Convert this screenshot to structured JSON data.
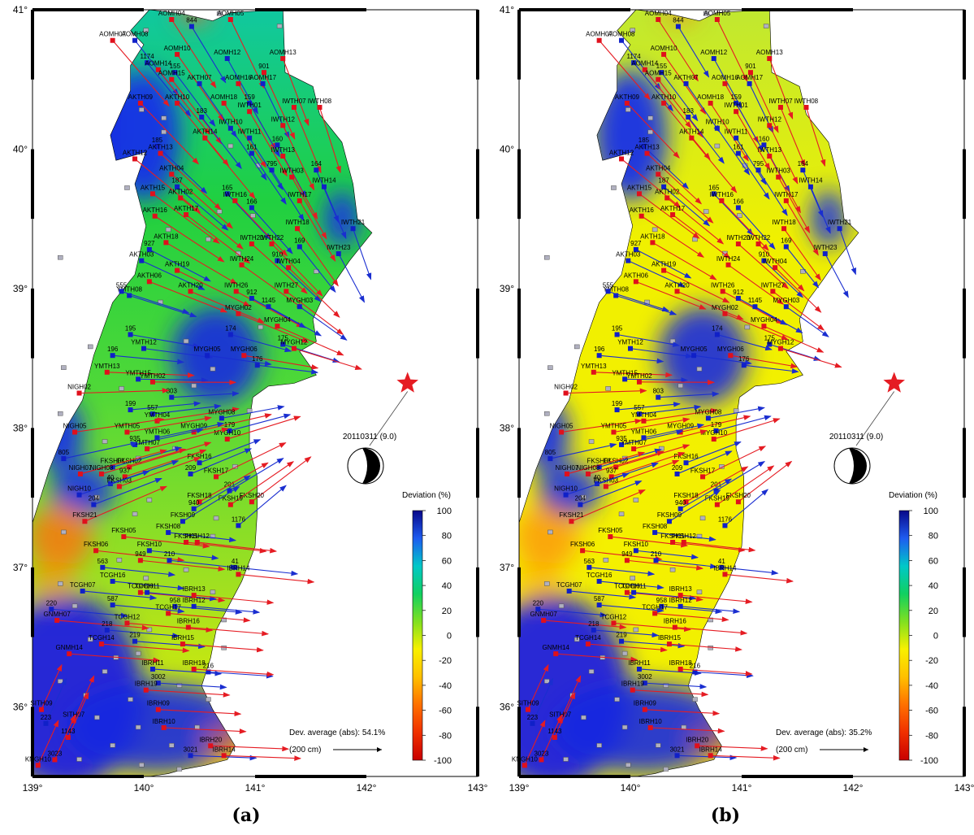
{
  "axes": {
    "lon_labels": [
      "139°",
      "140°",
      "141°",
      "142°",
      "143°"
    ],
    "lat_labels": [
      "36°",
      "37°",
      "38°",
      "39°",
      "40°",
      "41°"
    ],
    "lon_range": [
      139,
      143
    ],
    "lat_range": [
      35.5,
      41
    ]
  },
  "colorbar": {
    "title": "Deviation (%)",
    "ticks": [
      "100",
      "80",
      "60",
      "40",
      "20",
      "0",
      "-20",
      "-40",
      "-60",
      "-80",
      "-100"
    ],
    "colors": [
      "#08088a",
      "#1e5cf0",
      "#00c8c8",
      "#10d060",
      "#80e020",
      "#f8f000",
      "#ffc000",
      "#ff7000",
      "#f03000",
      "#c80000"
    ]
  },
  "epicenter": {
    "lon": 142.37,
    "lat": 38.32,
    "label": "20110311 (9.0)",
    "star_color": "#e51c23"
  },
  "scale": {
    "label": "(200 cm)"
  },
  "colors": {
    "arrow_red": "#e51c23",
    "arrow_blue": "#1a2ed0",
    "station_gray": "#b0b0c0"
  },
  "panels": [
    {
      "id": "a",
      "caption": "(a)",
      "dev_label": "Dev. average (abs): 54.1%"
    },
    {
      "id": "b",
      "caption": "(b)",
      "dev_label": "Dev. average (abs): 35.2%"
    }
  ],
  "stations": [
    {
      "name": "AOMH07",
      "lon": 139.72,
      "lat": 40.78,
      "kind": "red"
    },
    {
      "name": "AOMH08",
      "lon": 139.92,
      "lat": 40.78,
      "kind": "blue"
    },
    {
      "name": "AOMH04",
      "lon": 140.25,
      "lat": 40.93,
      "kind": "red"
    },
    {
      "name": "844",
      "lon": 140.43,
      "lat": 40.88,
      "kind": "blue"
    },
    {
      "name": "AOMH05",
      "lon": 140.78,
      "lat": 40.93,
      "kind": "red"
    },
    {
      "name": "AOMH10",
      "lon": 140.3,
      "lat": 40.68,
      "kind": "red"
    },
    {
      "name": "AOMH12",
      "lon": 140.75,
      "lat": 40.65,
      "kind": "blue"
    },
    {
      "name": "AOMH13",
      "lon": 141.25,
      "lat": 40.65,
      "kind": "red"
    },
    {
      "name": "1174",
      "lon": 140.03,
      "lat": 40.62,
      "kind": "blue"
    },
    {
      "name": "AOMH14",
      "lon": 140.13,
      "lat": 40.57,
      "kind": "red"
    },
    {
      "name": "155",
      "lon": 140.28,
      "lat": 40.55,
      "kind": "blue"
    },
    {
      "name": "901",
      "lon": 141.08,
      "lat": 40.55,
      "kind": "red"
    },
    {
      "name": "AOMH15",
      "lon": 140.25,
      "lat": 40.5,
      "kind": "red"
    },
    {
      "name": "AKTH07",
      "lon": 140.5,
      "lat": 40.47,
      "kind": "blue"
    },
    {
      "name": "AOMH16",
      "lon": 140.85,
      "lat": 40.47,
      "kind": "red"
    },
    {
      "name": "AOMH17",
      "lon": 141.07,
      "lat": 40.47,
      "kind": "blue"
    },
    {
      "name": "AKTH09",
      "lon": 139.97,
      "lat": 40.33,
      "kind": "red"
    },
    {
      "name": "AKTH10",
      "lon": 140.3,
      "lat": 40.33,
      "kind": "red"
    },
    {
      "name": "AOMH18",
      "lon": 140.72,
      "lat": 40.33,
      "kind": "red"
    },
    {
      "name": "159",
      "lon": 140.95,
      "lat": 40.33,
      "kind": "blue"
    },
    {
      "name": "IWTH01",
      "lon": 140.95,
      "lat": 40.27,
      "kind": "red"
    },
    {
      "name": "IWTH07",
      "lon": 141.35,
      "lat": 40.3,
      "kind": "red"
    },
    {
      "name": "IWTH08",
      "lon": 141.58,
      "lat": 40.3,
      "kind": "red"
    },
    {
      "name": "183",
      "lon": 140.52,
      "lat": 40.23,
      "kind": "blue"
    },
    {
      "name": "IWTH10",
      "lon": 140.78,
      "lat": 40.15,
      "kind": "blue"
    },
    {
      "name": "IWTH12",
      "lon": 141.25,
      "lat": 40.17,
      "kind": "red"
    },
    {
      "name": "IWTH11",
      "lon": 140.95,
      "lat": 40.08,
      "kind": "blue"
    },
    {
      "name": "AKTH14",
      "lon": 140.55,
      "lat": 40.08,
      "kind": "red"
    },
    {
      "name": "160",
      "lon": 141.2,
      "lat": 40.03,
      "kind": "blue"
    },
    {
      "name": "185",
      "lon": 140.12,
      "lat": 40.02,
      "kind": "blue"
    },
    {
      "name": "161",
      "lon": 140.97,
      "lat": 39.97,
      "kind": "blue"
    },
    {
      "name": "AKTH13",
      "lon": 140.15,
      "lat": 39.97,
      "kind": "red"
    },
    {
      "name": "AKTH12",
      "lon": 139.92,
      "lat": 39.93,
      "kind": "red"
    },
    {
      "name": "IWTH13",
      "lon": 141.25,
      "lat": 39.95,
      "kind": "red"
    },
    {
      "name": "795",
      "lon": 141.15,
      "lat": 39.85,
      "kind": "blue"
    },
    {
      "name": "164",
      "lon": 141.55,
      "lat": 39.85,
      "kind": "blue"
    },
    {
      "name": "AKTH04",
      "lon": 140.25,
      "lat": 39.82,
      "kind": "red"
    },
    {
      "name": "IWTH03",
      "lon": 141.33,
      "lat": 39.8,
      "kind": "red"
    },
    {
      "name": "IWTH14",
      "lon": 141.62,
      "lat": 39.73,
      "kind": "blue"
    },
    {
      "name": "187",
      "lon": 140.3,
      "lat": 39.73,
      "kind": "blue"
    },
    {
      "name": "165",
      "lon": 140.75,
      "lat": 39.68,
      "kind": "blue"
    },
    {
      "name": "AKTH15",
      "lon": 140.08,
      "lat": 39.68,
      "kind": "red"
    },
    {
      "name": "AKTH02",
      "lon": 140.33,
      "lat": 39.65,
      "kind": "red"
    },
    {
      "name": "IWTH16",
      "lon": 140.82,
      "lat": 39.63,
      "kind": "red"
    },
    {
      "name": "IWTH17",
      "lon": 141.4,
      "lat": 39.63,
      "kind": "red"
    },
    {
      "name": "166",
      "lon": 140.97,
      "lat": 39.58,
      "kind": "blue"
    },
    {
      "name": "AKTH16",
      "lon": 140.1,
      "lat": 39.52,
      "kind": "red"
    },
    {
      "name": "AKTH17",
      "lon": 140.38,
      "lat": 39.53,
      "kind": "red"
    },
    {
      "name": "IWTH18",
      "lon": 141.38,
      "lat": 39.43,
      "kind": "red"
    },
    {
      "name": "IWTH21",
      "lon": 141.88,
      "lat": 39.43,
      "kind": "blue"
    },
    {
      "name": "AKTH18",
      "lon": 140.2,
      "lat": 39.33,
      "kind": "red"
    },
    {
      "name": "927",
      "lon": 140.05,
      "lat": 39.28,
      "kind": "blue"
    },
    {
      "name": "IWTH20",
      "lon": 140.97,
      "lat": 39.32,
      "kind": "red"
    },
    {
      "name": "IWTH22",
      "lon": 141.15,
      "lat": 39.32,
      "kind": "red"
    },
    {
      "name": "169",
      "lon": 141.4,
      "lat": 39.3,
      "kind": "blue"
    },
    {
      "name": "IWTH23",
      "lon": 141.75,
      "lat": 39.25,
      "kind": "blue"
    },
    {
      "name": "AKTH03",
      "lon": 139.98,
      "lat": 39.2,
      "kind": "blue"
    },
    {
      "name": "910",
      "lon": 141.2,
      "lat": 39.2,
      "kind": "blue"
    },
    {
      "name": "IWTH24",
      "lon": 140.88,
      "lat": 39.17,
      "kind": "red"
    },
    {
      "name": "IWTH04",
      "lon": 141.3,
      "lat": 39.15,
      "kind": "red"
    },
    {
      "name": "AKTH19",
      "lon": 140.3,
      "lat": 39.13,
      "kind": "red"
    },
    {
      "name": "AKTH06",
      "lon": 140.05,
      "lat": 39.05,
      "kind": "red"
    },
    {
      "name": "IWTH26",
      "lon": 140.83,
      "lat": 38.98,
      "kind": "red"
    },
    {
      "name": "IWTH27",
      "lon": 141.28,
      "lat": 38.98,
      "kind": "red"
    },
    {
      "name": "AKTH20",
      "lon": 140.42,
      "lat": 38.98,
      "kind": "red"
    },
    {
      "name": "YMTH08",
      "lon": 139.87,
      "lat": 38.95,
      "kind": "blue"
    },
    {
      "name": "555",
      "lon": 139.8,
      "lat": 38.98,
      "kind": "blue"
    },
    {
      "name": "912",
      "lon": 140.97,
      "lat": 38.93,
      "kind": "blue"
    },
    {
      "name": "1145",
      "lon": 141.12,
      "lat": 38.87,
      "kind": "blue"
    },
    {
      "name": "MYGH02",
      "lon": 140.85,
      "lat": 38.82,
      "kind": "red"
    },
    {
      "name": "MYGH03",
      "lon": 141.4,
      "lat": 38.87,
      "kind": "blue"
    },
    {
      "name": "MYGH04",
      "lon": 141.2,
      "lat": 38.73,
      "kind": "red"
    },
    {
      "name": "174",
      "lon": 140.78,
      "lat": 38.67,
      "kind": "blue"
    },
    {
      "name": "195",
      "lon": 139.88,
      "lat": 38.67,
      "kind": "blue"
    },
    {
      "name": "175",
      "lon": 141.25,
      "lat": 38.6,
      "kind": "blue"
    },
    {
      "name": "MYGH12",
      "lon": 141.35,
      "lat": 38.57,
      "kind": "red"
    },
    {
      "name": "YMTH12",
      "lon": 140.0,
      "lat": 38.57,
      "kind": "blue"
    },
    {
      "name": "MYGH05",
      "lon": 140.57,
      "lat": 38.52,
      "kind": "blue"
    },
    {
      "name": "MYGH06",
      "lon": 140.9,
      "lat": 38.52,
      "kind": "red"
    },
    {
      "name": "196",
      "lon": 139.72,
      "lat": 38.52,
      "kind": "blue"
    },
    {
      "name": "176",
      "lon": 141.02,
      "lat": 38.45,
      "kind": "blue"
    },
    {
      "name": "YMTH13",
      "lon": 139.67,
      "lat": 38.4,
      "kind": "red"
    },
    {
      "name": "YMTH15",
      "lon": 139.95,
      "lat": 38.35,
      "kind": "blue"
    },
    {
      "name": "YMTH02",
      "lon": 140.08,
      "lat": 38.33,
      "kind": "red"
    },
    {
      "name": "803",
      "lon": 140.25,
      "lat": 38.22,
      "kind": "blue"
    },
    {
      "name": "NIGH02",
      "lon": 139.42,
      "lat": 38.25,
      "kind": "red"
    },
    {
      "name": "199",
      "lon": 139.88,
      "lat": 38.13,
      "kind": "blue"
    },
    {
      "name": "557",
      "lon": 140.08,
      "lat": 38.1,
      "kind": "blue"
    },
    {
      "name": "YMTH04",
      "lon": 140.12,
      "lat": 38.05,
      "kind": "red"
    },
    {
      "name": "MYGH08",
      "lon": 140.7,
      "lat": 38.07,
      "kind": "blue"
    },
    {
      "name": "NIGH05",
      "lon": 139.38,
      "lat": 37.97,
      "kind": "red"
    },
    {
      "name": "YMTH05",
      "lon": 139.85,
      "lat": 37.97,
      "kind": "red"
    },
    {
      "name": "MYGH09",
      "lon": 140.45,
      "lat": 37.97,
      "kind": "red"
    },
    {
      "name": "179",
      "lon": 140.77,
      "lat": 37.98,
      "kind": "blue"
    },
    {
      "name": "YMTH06",
      "lon": 140.12,
      "lat": 37.93,
      "kind": "blue"
    },
    {
      "name": "MYGH10",
      "lon": 140.75,
      "lat": 37.92,
      "kind": "red"
    },
    {
      "name": "935",
      "lon": 139.92,
      "lat": 37.88,
      "kind": "blue"
    },
    {
      "name": "YMTH07",
      "lon": 140.03,
      "lat": 37.85,
      "kind": "red"
    },
    {
      "name": "805",
      "lon": 139.28,
      "lat": 37.78,
      "kind": "blue"
    },
    {
      "name": "FKSH16",
      "lon": 140.5,
      "lat": 37.75,
      "kind": "blue"
    },
    {
      "name": "FKSH01",
      "lon": 139.72,
      "lat": 37.72,
      "kind": "blue"
    },
    {
      "name": "FKSH02",
      "lon": 139.87,
      "lat": 37.72,
      "kind": "red"
    },
    {
      "name": "209",
      "lon": 140.42,
      "lat": 37.67,
      "kind": "blue"
    },
    {
      "name": "FKSH17",
      "lon": 140.65,
      "lat": 37.65,
      "kind": "red"
    },
    {
      "name": "NIGH07",
      "lon": 139.43,
      "lat": 37.67,
      "kind": "red"
    },
    {
      "name": "NIGH08",
      "lon": 139.62,
      "lat": 37.67,
      "kind": "red"
    },
    {
      "name": "937",
      "lon": 139.83,
      "lat": 37.65,
      "kind": "red"
    },
    {
      "name": "40",
      "lon": 139.7,
      "lat": 37.6,
      "kind": "blue"
    },
    {
      "name": "FKSH03",
      "lon": 139.78,
      "lat": 37.58,
      "kind": "red"
    },
    {
      "name": "201",
      "lon": 140.77,
      "lat": 37.55,
      "kind": "blue"
    },
    {
      "name": "NIGH10",
      "lon": 139.42,
      "lat": 37.52,
      "kind": "blue"
    },
    {
      "name": "FKSH20",
      "lon": 140.97,
      "lat": 37.47,
      "kind": "red"
    },
    {
      "name": "FKSH18",
      "lon": 140.5,
      "lat": 37.47,
      "kind": "red"
    },
    {
      "name": "204",
      "lon": 139.55,
      "lat": 37.45,
      "kind": "blue"
    },
    {
      "name": "FKSH19",
      "lon": 140.78,
      "lat": 37.45,
      "kind": "red"
    },
    {
      "name": "940",
      "lon": 140.45,
      "lat": 37.42,
      "kind": "blue"
    },
    {
      "name": "FKSH09",
      "lon": 140.35,
      "lat": 37.33,
      "kind": "blue"
    },
    {
      "name": "1176",
      "lon": 140.85,
      "lat": 37.3,
      "kind": "blue"
    },
    {
      "name": "FKSH21",
      "lon": 139.47,
      "lat": 37.33,
      "kind": "red"
    },
    {
      "name": "FKSH08",
      "lon": 140.22,
      "lat": 37.25,
      "kind": "blue"
    },
    {
      "name": "FKSH05",
      "lon": 139.82,
      "lat": 37.22,
      "kind": "red"
    },
    {
      "name": "FKSH11",
      "lon": 140.38,
      "lat": 37.18,
      "kind": "red"
    },
    {
      "name": "FKSH12",
      "lon": 140.48,
      "lat": 37.18,
      "kind": "red"
    },
    {
      "name": "FKSH06",
      "lon": 139.57,
      "lat": 37.12,
      "kind": "red"
    },
    {
      "name": "FKSH10",
      "lon": 140.05,
      "lat": 37.12,
      "kind": "blue"
    },
    {
      "name": "949",
      "lon": 139.97,
      "lat": 37.05,
      "kind": "red"
    },
    {
      "name": "210",
      "lon": 140.23,
      "lat": 37.05,
      "kind": "blue"
    },
    {
      "name": "563",
      "lon": 139.63,
      "lat": 37.0,
      "kind": "blue"
    },
    {
      "name": "41",
      "lon": 140.82,
      "lat": 37.0,
      "kind": "blue"
    },
    {
      "name": "IBRH14",
      "lon": 140.85,
      "lat": 36.95,
      "kind": "red"
    },
    {
      "name": "TCGH16",
      "lon": 139.72,
      "lat": 36.9,
      "kind": "blue"
    },
    {
      "name": "TCGH07",
      "lon": 139.45,
      "lat": 36.83,
      "kind": "blue"
    },
    {
      "name": "TCGH10",
      "lon": 139.97,
      "lat": 36.82,
      "kind": "red"
    },
    {
      "name": "TCGH11",
      "lon": 140.03,
      "lat": 36.82,
      "kind": "blue"
    },
    {
      "name": "IBRH13",
      "lon": 140.45,
      "lat": 36.8,
      "kind": "red"
    },
    {
      "name": "587",
      "lon": 139.72,
      "lat": 36.73,
      "kind": "blue"
    },
    {
      "name": "958",
      "lon": 140.28,
      "lat": 36.72,
      "kind": "blue"
    },
    {
      "name": "IBRH12",
      "lon": 140.45,
      "lat": 36.72,
      "kind": "blue"
    },
    {
      "name": "220",
      "lon": 139.17,
      "lat": 36.7,
      "kind": "blue"
    },
    {
      "name": "TCGH17",
      "lon": 140.22,
      "lat": 36.67,
      "kind": "red"
    },
    {
      "name": "GNMH07",
      "lon": 139.22,
      "lat": 36.62,
      "kind": "red"
    },
    {
      "name": "TCGH12",
      "lon": 139.85,
      "lat": 36.6,
      "kind": "red"
    },
    {
      "name": "IBRH16",
      "lon": 140.4,
      "lat": 36.57,
      "kind": "red"
    },
    {
      "name": "218",
      "lon": 139.67,
      "lat": 36.55,
      "kind": "blue"
    },
    {
      "name": "219",
      "lon": 139.92,
      "lat": 36.47,
      "kind": "blue"
    },
    {
      "name": "TCGH14",
      "lon": 139.62,
      "lat": 36.45,
      "kind": "red"
    },
    {
      "name": "IBRH15",
      "lon": 140.35,
      "lat": 36.45,
      "kind": "red"
    },
    {
      "name": "GNMH14",
      "lon": 139.33,
      "lat": 36.38,
      "kind": "red"
    },
    {
      "name": "IBRH11",
      "lon": 140.08,
      "lat": 36.27,
      "kind": "blue"
    },
    {
      "name": "216",
      "lon": 140.58,
      "lat": 36.25,
      "kind": "blue"
    },
    {
      "name": "IBRH18",
      "lon": 140.45,
      "lat": 36.27,
      "kind": "red"
    },
    {
      "name": "3002",
      "lon": 140.13,
      "lat": 36.17,
      "kind": "blue"
    },
    {
      "name": "IBRH19",
      "lon": 140.02,
      "lat": 36.12,
      "kind": "red"
    },
    {
      "name": "IBRH09",
      "lon": 140.13,
      "lat": 35.98,
      "kind": "red"
    },
    {
      "name": "IBRH10",
      "lon": 140.18,
      "lat": 35.85,
      "kind": "red"
    },
    {
      "name": "IBRH20",
      "lon": 140.6,
      "lat": 35.72,
      "kind": "red"
    },
    {
      "name": "3021",
      "lon": 140.42,
      "lat": 35.65,
      "kind": "blue"
    },
    {
      "name": "IBRH14",
      "lon": 140.72,
      "lat": 35.65,
      "kind": "red"
    },
    {
      "name": "SITH09",
      "lon": 139.08,
      "lat": 35.98,
      "kind": "red"
    },
    {
      "name": "SITH07",
      "lon": 139.37,
      "lat": 35.9,
      "kind": "red"
    },
    {
      "name": "223",
      "lon": 139.12,
      "lat": 35.88,
      "kind": "blue"
    },
    {
      "name": "1143",
      "lon": 139.32,
      "lat": 35.78,
      "kind": "red"
    },
    {
      "name": "3023",
      "lon": 139.2,
      "lat": 35.62,
      "kind": "red"
    },
    {
      "name": "KNGH10",
      "lon": 139.05,
      "lat": 35.58,
      "kind": "red"
    }
  ],
  "gray_stations": [
    [
      140.68,
      40.97
    ],
    [
      140.02,
      40.85
    ],
    [
      141.22,
      40.88
    ],
    [
      139.98,
      40.28
    ],
    [
      140.18,
      40.22
    ],
    [
      140.18,
      40.12
    ],
    [
      140.78,
      40.02
    ],
    [
      141.03,
      39.88
    ],
    [
      139.85,
      39.72
    ],
    [
      140.68,
      39.55
    ],
    [
      140.98,
      39.52
    ],
    [
      140.22,
      39.42
    ],
    [
      140.58,
      39.35
    ],
    [
      140.85,
      39.25
    ],
    [
      139.25,
      39.22
    ],
    [
      141.55,
      39.12
    ],
    [
      140.15,
      38.9
    ],
    [
      141.05,
      38.72
    ],
    [
      140.38,
      38.62
    ],
    [
      139.52,
      38.58
    ],
    [
      140.62,
      38.42
    ],
    [
      139.28,
      38.43
    ],
    [
      139.8,
      38.28
    ],
    [
      140.45,
      38.3
    ],
    [
      139.25,
      38.1
    ],
    [
      140.95,
      38.12
    ],
    [
      139.65,
      37.9
    ],
    [
      140.28,
      37.85
    ],
    [
      139.95,
      37.78
    ],
    [
      140.82,
      37.72
    ],
    [
      139.58,
      37.5
    ],
    [
      140.05,
      37.48
    ],
    [
      139.92,
      37.38
    ],
    [
      140.65,
      37.35
    ],
    [
      139.28,
      37.25
    ],
    [
      140.62,
      37.22
    ],
    [
      139.78,
      37.05
    ],
    [
      140.38,
      36.98
    ],
    [
      140.02,
      36.92
    ],
    [
      139.25,
      36.88
    ],
    [
      140.62,
      36.82
    ],
    [
      139.38,
      36.72
    ],
    [
      140.72,
      36.62
    ],
    [
      139.52,
      36.48
    ],
    [
      140.05,
      36.55
    ],
    [
      139.75,
      36.35
    ],
    [
      139.95,
      36.38
    ],
    [
      140.72,
      36.42
    ],
    [
      139.65,
      36.25
    ],
    [
      139.25,
      36.18
    ],
    [
      140.32,
      36.15
    ],
    [
      139.48,
      36.08
    ],
    [
      139.88,
      36.05
    ],
    [
      140.58,
      36.05
    ],
    [
      139.58,
      35.92
    ],
    [
      139.95,
      35.85
    ],
    [
      140.48,
      35.85
    ],
    [
      139.72,
      35.72
    ],
    [
      140.25,
      35.72
    ],
    [
      139.42,
      35.62
    ],
    [
      139.98,
      35.58
    ],
    [
      140.32,
      35.55
    ]
  ]
}
